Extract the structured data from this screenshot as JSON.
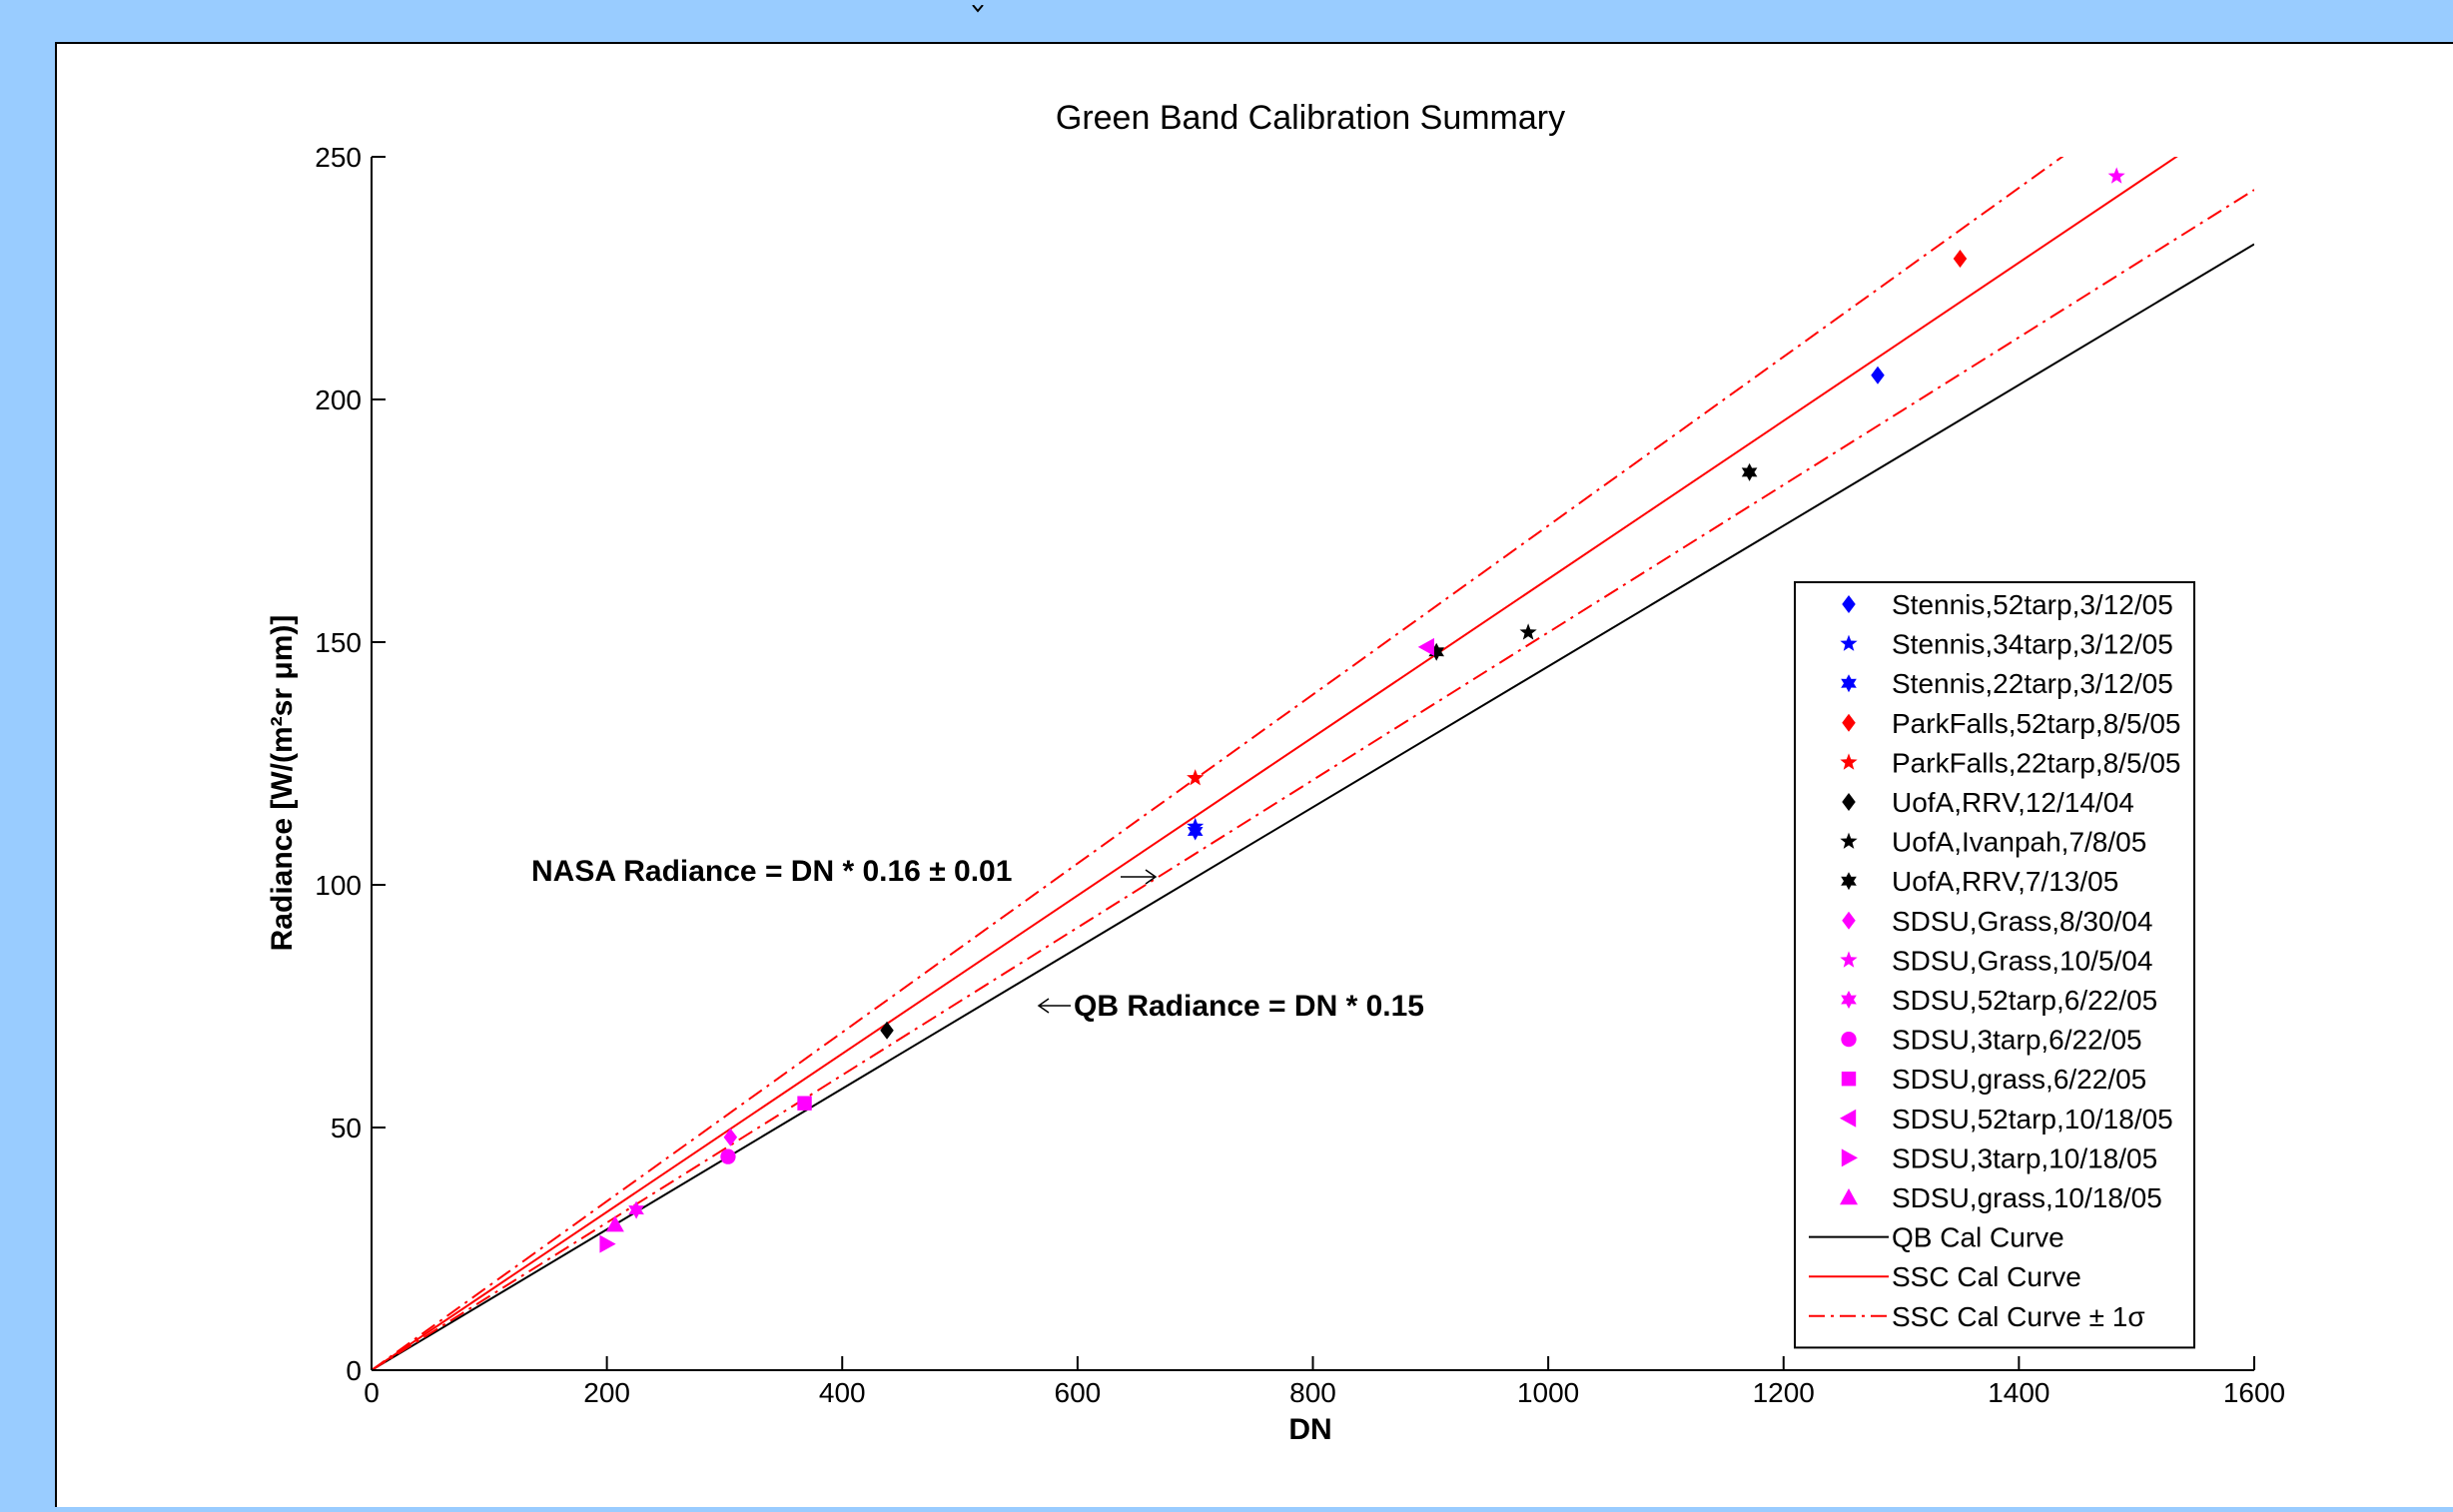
{
  "chart_data": {
    "type": "scatter",
    "title": "Green Band Calibration Summary",
    "xlabel": "DN",
    "ylabel": "Radiance [W/(m²sr μm)]",
    "xlim": [
      0,
      1600
    ],
    "ylim": [
      0,
      250
    ],
    "xticks": [
      0,
      200,
      400,
      600,
      800,
      1000,
      1200,
      1400,
      1600
    ],
    "yticks": [
      0,
      50,
      100,
      150,
      200,
      250
    ],
    "grid": false,
    "legend_position": "lower-right",
    "series": [
      {
        "name": "Stennis,52tarp,3/12/05",
        "marker": "diamond",
        "color": "#0000ff",
        "points": [
          [
            1280,
            205
          ]
        ]
      },
      {
        "name": "Stennis,34tarp,3/12/05",
        "marker": "pentagram",
        "color": "#0000ff",
        "points": [
          [
            700,
            112
          ]
        ]
      },
      {
        "name": "Stennis,22tarp,3/12/05",
        "marker": "hexagram",
        "color": "#0000ff",
        "points": [
          [
            700,
            111
          ]
        ]
      },
      {
        "name": "ParkFalls,52tarp,8/5/05",
        "marker": "diamond",
        "color": "#ff0000",
        "points": [
          [
            1350,
            229
          ]
        ]
      },
      {
        "name": "ParkFalls,22tarp,8/5/05",
        "marker": "pentagram",
        "color": "#ff0000",
        "points": [
          [
            700,
            122
          ]
        ]
      },
      {
        "name": "UofA,RRV,12/14/04",
        "marker": "diamond",
        "color": "#000000",
        "points": [
          [
            438,
            70
          ]
        ]
      },
      {
        "name": "UofA,Ivanpah,7/8/05",
        "marker": "pentagram",
        "color": "#000000",
        "points": [
          [
            983,
            152
          ]
        ]
      },
      {
        "name": "UofA,RRV,7/13/05",
        "marker": "hexagram",
        "color": "#000000",
        "points": [
          [
            1171,
            185
          ],
          [
            905,
            148
          ]
        ]
      },
      {
        "name": "SDSU,Grass,8/30/04",
        "marker": "diamond",
        "color": "#ff00ff",
        "points": [
          [
            305,
            48
          ]
        ]
      },
      {
        "name": "SDSU,Grass,10/5/04",
        "marker": "pentagram",
        "color": "#ff00ff",
        "points": [
          [
            1483,
            246
          ]
        ]
      },
      {
        "name": "SDSU,52tarp,6/22/05",
        "marker": "hexagram",
        "color": "#ff00ff",
        "points": [
          [
            225,
            33
          ]
        ]
      },
      {
        "name": "SDSU,3tarp,6/22/05",
        "marker": "circle",
        "color": "#ff00ff",
        "points": [
          [
            303,
            44
          ]
        ]
      },
      {
        "name": "SDSU,grass,6/22/05",
        "marker": "square",
        "color": "#ff00ff",
        "points": [
          [
            368,
            55
          ]
        ]
      },
      {
        "name": "SDSU,52tarp,10/18/05",
        "marker": "triangle-left",
        "color": "#ff00ff",
        "points": [
          [
            897,
            149
          ]
        ]
      },
      {
        "name": "SDSU,3tarp,10/18/05",
        "marker": "triangle-right",
        "color": "#ff00ff",
        "points": [
          [
            200,
            26
          ]
        ]
      },
      {
        "name": "SDSU,grass,10/18/05",
        "marker": "triangle-up",
        "color": "#ff00ff",
        "points": [
          [
            207,
            30
          ]
        ]
      }
    ],
    "lines": [
      {
        "name": "QB Cal Curve",
        "slope": 0.145,
        "color": "#000000",
        "style": "solid",
        "x_range": [
          0,
          1600
        ]
      },
      {
        "name": "SSC Cal Curve",
        "slope": 0.163,
        "color": "#ff0000",
        "style": "solid",
        "x_range": [
          0,
          1600
        ]
      },
      {
        "name": "SSC Cal Curve ± 1σ",
        "slope": 0.174,
        "color": "#ff0000",
        "style": "dashdot",
        "x_range": [
          0,
          1600
        ]
      },
      {
        "name": "",
        "slope": 0.152,
        "color": "#ff0000",
        "style": "dashdot",
        "x_range": [
          0,
          1600
        ]
      }
    ],
    "annotations": [
      {
        "text": "NASA Radiance = DN * 0.16 ± 0.01",
        "arrow": "right"
      },
      {
        "text": "QB Radiance = DN * 0.15",
        "arrow": "left"
      }
    ]
  }
}
